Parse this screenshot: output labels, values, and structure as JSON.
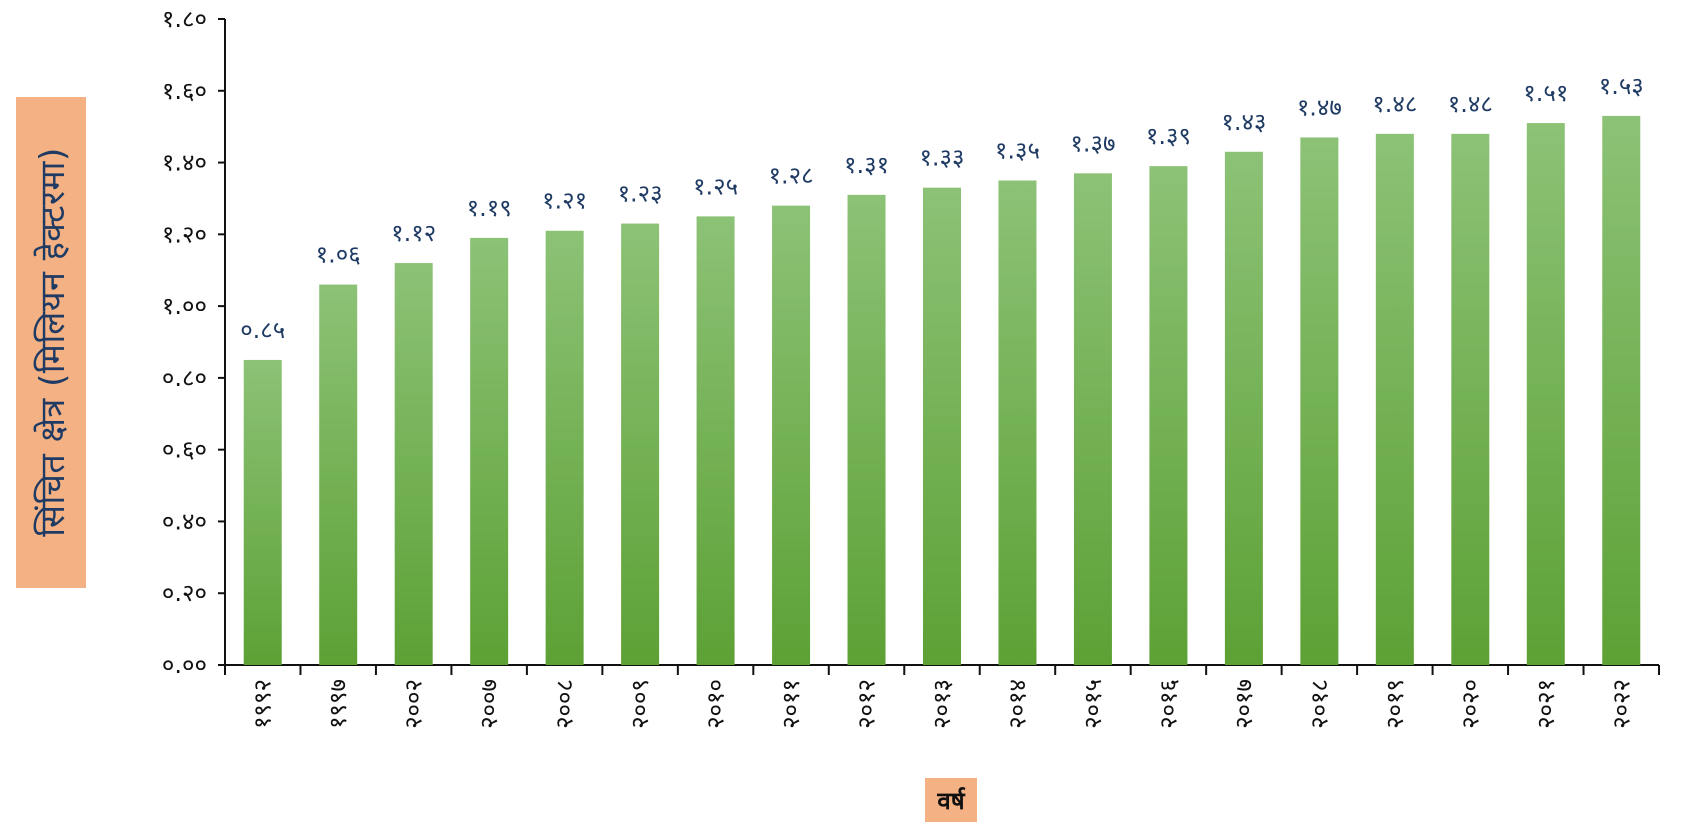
{
  "chart_data": {
    "type": "bar",
    "categories": [
      "१९९२",
      "१९९७",
      "२००२",
      "२००७",
      "२००८",
      "२००९",
      "२०१०",
      "२०११",
      "२०१२",
      "२०१३",
      "२०१४",
      "२०१५",
      "२०१६",
      "२०१७",
      "२०१८",
      "२०१९",
      "२०२०",
      "२०२१",
      "२०२२"
    ],
    "values": [
      0.85,
      1.06,
      1.12,
      1.19,
      1.21,
      1.23,
      1.25,
      1.28,
      1.31,
      1.33,
      1.35,
      1.37,
      1.39,
      1.43,
      1.47,
      1.48,
      1.48,
      1.51,
      1.53
    ],
    "data_labels": [
      "०.८५",
      "१.०६",
      "१.१२",
      "१.१९",
      "१.२१",
      "१.२३",
      "१.२५",
      "१.२८",
      "१.३१",
      "१.३३",
      "१.३५",
      "१.३७",
      "१.३९",
      "१.४३",
      "१.४७",
      "१.४८",
      "१.४८",
      "१.५१",
      "१.५३"
    ],
    "y_ticks": [
      {
        "value": 0.0,
        "label": "०.००"
      },
      {
        "value": 0.2,
        "label": "०.२०"
      },
      {
        "value": 0.4,
        "label": "०.४०"
      },
      {
        "value": 0.6,
        "label": "०.६०"
      },
      {
        "value": 0.8,
        "label": "०.८०"
      },
      {
        "value": 1.0,
        "label": "१.००"
      },
      {
        "value": 1.2,
        "label": "१.२०"
      },
      {
        "value": 1.4,
        "label": "१.४०"
      },
      {
        "value": 1.6,
        "label": "१.६०"
      },
      {
        "value": 1.8,
        "label": "१.८०"
      }
    ],
    "ylim": [
      0,
      1.8
    ],
    "xlabel": "वर्ष",
    "ylabel": "सिंचित क्षेत्र  (मिलियन हेक्टरमा)",
    "title": "",
    "grid": false,
    "legend": "none",
    "colors": {
      "bar_top": "#8cc276",
      "bar_bottom": "#5da135",
      "data_label": "#1f3b63",
      "axis_title_bg": "#f4b183",
      "axis_line": "#111111"
    }
  }
}
